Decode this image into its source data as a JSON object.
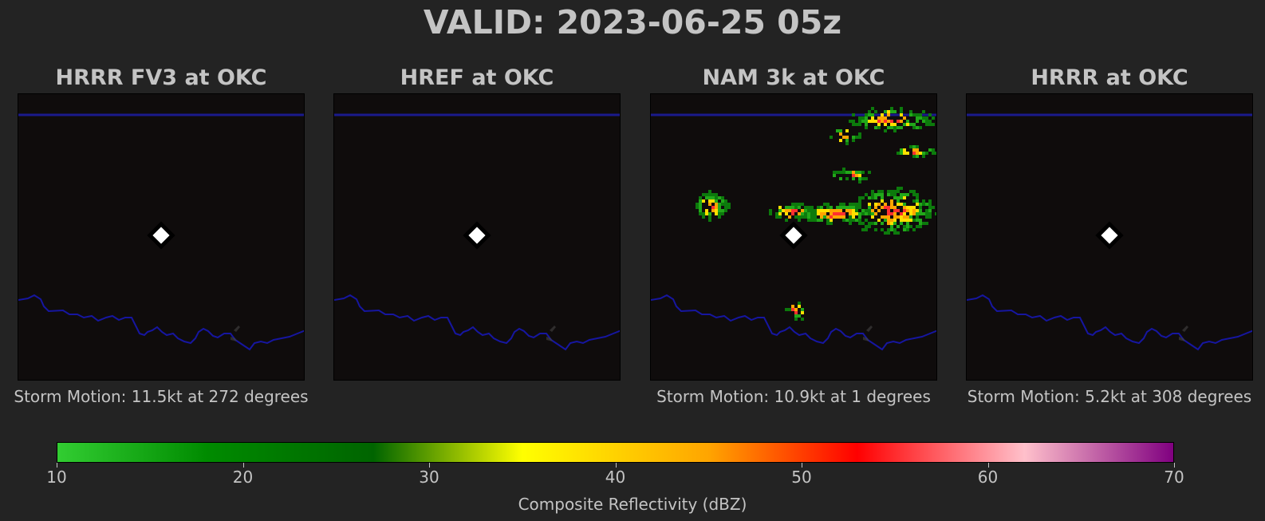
{
  "title": "VALID: 2023-06-25 05z",
  "panels": [
    {
      "title": "HRRR FV3 at OKC",
      "motion": "Storm Motion: 11.5kt at 272 degrees",
      "has_echo": false
    },
    {
      "title": "HREF at OKC",
      "motion": "",
      "has_echo": false
    },
    {
      "title": "NAM 3k at OKC",
      "motion": "Storm Motion: 10.9kt at 1 degrees",
      "has_echo": true
    },
    {
      "title": "HRRR at OKC",
      "motion": "Storm Motion: 5.2kt at 308 degrees",
      "has_echo": false
    }
  ],
  "colorbar": {
    "label": "Composite Reflectivity (dBZ)",
    "min": 10,
    "max": 70,
    "ticks": [
      "10",
      "20",
      "30",
      "40",
      "50",
      "60",
      "70"
    ],
    "stops": [
      {
        "value": 10,
        "color": "#32cd32"
      },
      {
        "value": 18,
        "color": "#008b00"
      },
      {
        "value": 27,
        "color": "#006400"
      },
      {
        "value": 35,
        "color": "#ffff00"
      },
      {
        "value": 45,
        "color": "#ffa500"
      },
      {
        "value": 53,
        "color": "#ff0000"
      },
      {
        "value": 62,
        "color": "#ffc0cb"
      },
      {
        "value": 70,
        "color": "#800080"
      }
    ]
  },
  "chart_data": {
    "type": "heatmap",
    "title": "VALID: 2023-06-25 05z",
    "site": "OKC",
    "value_label": "Composite Reflectivity (dBZ)",
    "value_range": [
      10,
      70
    ],
    "series": [
      {
        "name": "HRRR FV3 at OKC",
        "storm_motion_kt": 11.5,
        "storm_motion_deg": 272
      },
      {
        "name": "HREF at OKC"
      },
      {
        "name": "NAM 3k at OKC",
        "storm_motion_kt": 10.9,
        "storm_motion_deg": 1
      },
      {
        "name": "HRRR at OKC",
        "storm_motion_kt": 5.2,
        "storm_motion_deg": 308
      }
    ]
  }
}
